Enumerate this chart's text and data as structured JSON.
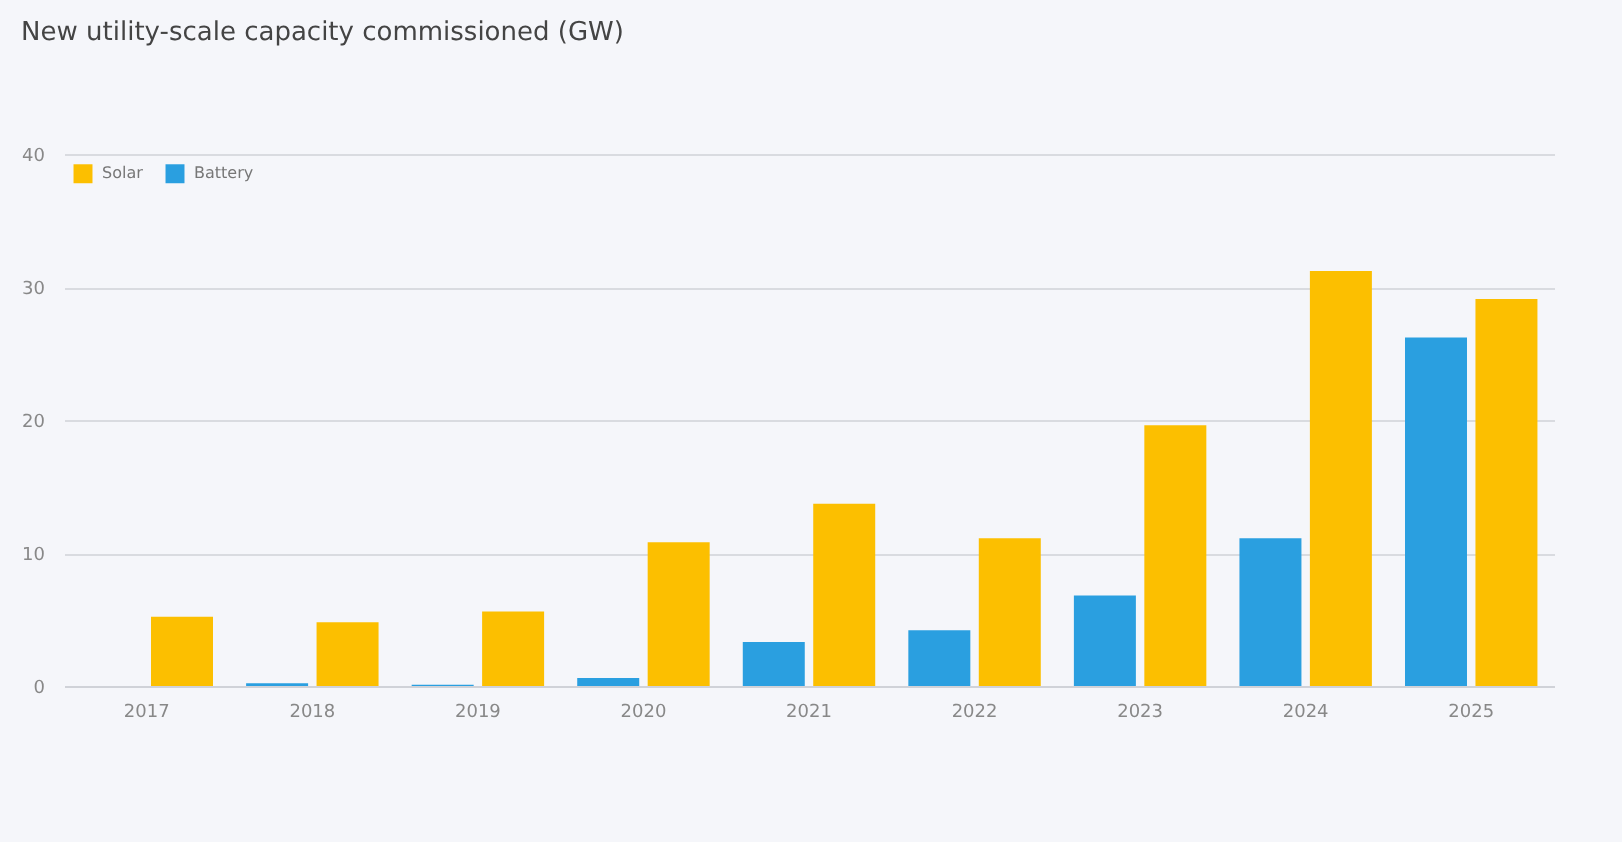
{
  "chart_data": {
    "type": "bar",
    "title": "New utility-scale capacity commissioned (GW)",
    "categories": [
      "2017",
      "2018",
      "2019",
      "2020",
      "2021",
      "2022",
      "2023",
      "2024",
      "2025"
    ],
    "series": [
      {
        "name": "Solar",
        "color": "#fcbf00",
        "values": [
          5.2,
          4.8,
          5.6,
          10.8,
          13.7,
          11.1,
          19.6,
          31.2,
          29.1
        ]
      },
      {
        "name": "Battery",
        "color": "#2a9fe0",
        "values": [
          0,
          0.2,
          0.1,
          0.6,
          3.3,
          4.2,
          6.8,
          11.1,
          26.2
        ]
      }
    ],
    "ylim": [
      0,
      40
    ],
    "yticks": [
      0,
      10,
      20,
      30,
      40
    ],
    "grid": "y",
    "legend": "top left"
  }
}
